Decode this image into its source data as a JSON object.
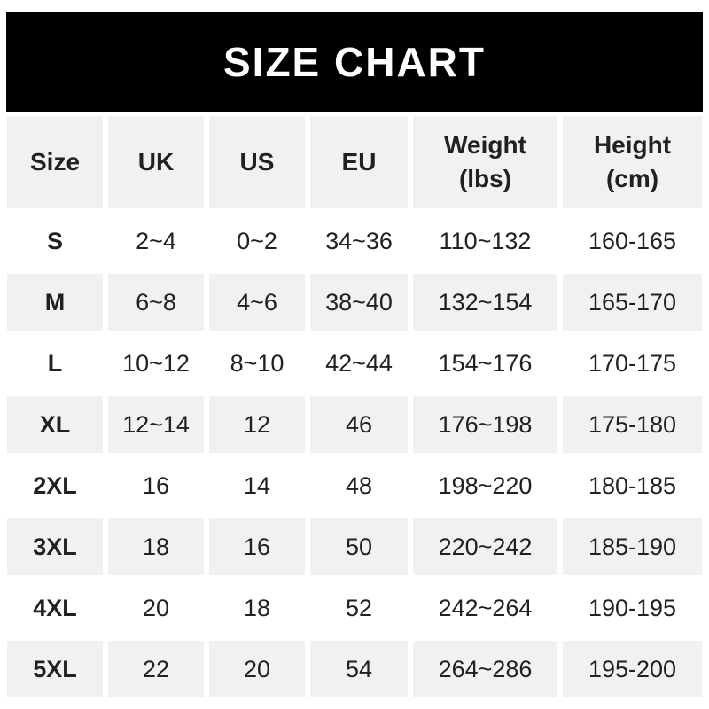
{
  "banner": {
    "title": "SIZE CHART"
  },
  "colors": {
    "banner_bg": "#000000",
    "banner_text": "#ffffff",
    "stripe": "#f1f1f1",
    "text": "#212121",
    "page_bg": "#ffffff"
  },
  "table": {
    "headers": [
      "Size",
      "UK",
      "US",
      "EU",
      "Weight\n(lbs)",
      "Height\n(cm)"
    ],
    "rows": [
      [
        "S",
        "2~4",
        "0~2",
        "34~36",
        "110~132",
        "160-165"
      ],
      [
        "M",
        "6~8",
        "4~6",
        "38~40",
        "132~154",
        "165-170"
      ],
      [
        "L",
        "10~12",
        "8~10",
        "42~44",
        "154~176",
        "170-175"
      ],
      [
        "XL",
        "12~14",
        "12",
        "46",
        "176~198",
        "175-180"
      ],
      [
        "2XL",
        "16",
        "14",
        "48",
        "198~220",
        "180-185"
      ],
      [
        "3XL",
        "18",
        "16",
        "50",
        "220~242",
        "185-190"
      ],
      [
        "4XL",
        "20",
        "18",
        "52",
        "242~264",
        "190-195"
      ],
      [
        "5XL",
        "22",
        "20",
        "54",
        "264~286",
        "195-200"
      ]
    ],
    "striped_row_indexes": [
      1,
      3,
      5,
      7
    ]
  },
  "chart_data": {
    "type": "table",
    "title": "SIZE CHART",
    "columns": [
      "Size",
      "UK",
      "US",
      "EU",
      "Weight (lbs)",
      "Height (cm)"
    ],
    "rows": [
      {
        "size": "S",
        "uk": "2~4",
        "us": "0~2",
        "eu": "34~36",
        "weight_lbs": "110~132",
        "height_cm": "160-165"
      },
      {
        "size": "M",
        "uk": "6~8",
        "us": "4~6",
        "eu": "38~40",
        "weight_lbs": "132~154",
        "height_cm": "165-170"
      },
      {
        "size": "L",
        "uk": "10~12",
        "us": "8~10",
        "eu": "42~44",
        "weight_lbs": "154~176",
        "height_cm": "170-175"
      },
      {
        "size": "XL",
        "uk": "12~14",
        "us": "12",
        "eu": "46",
        "weight_lbs": "176~198",
        "height_cm": "175-180"
      },
      {
        "size": "2XL",
        "uk": "16",
        "us": "14",
        "eu": "48",
        "weight_lbs": "198~220",
        "height_cm": "180-185"
      },
      {
        "size": "3XL",
        "uk": "18",
        "us": "16",
        "eu": "50",
        "weight_lbs": "220~242",
        "height_cm": "185-190"
      },
      {
        "size": "4XL",
        "uk": "20",
        "us": "18",
        "eu": "52",
        "weight_lbs": "242~264",
        "height_cm": "190-195"
      },
      {
        "size": "5XL",
        "uk": "22",
        "us": "20",
        "eu": "54",
        "weight_lbs": "264~286",
        "height_cm": "195-200"
      }
    ]
  }
}
